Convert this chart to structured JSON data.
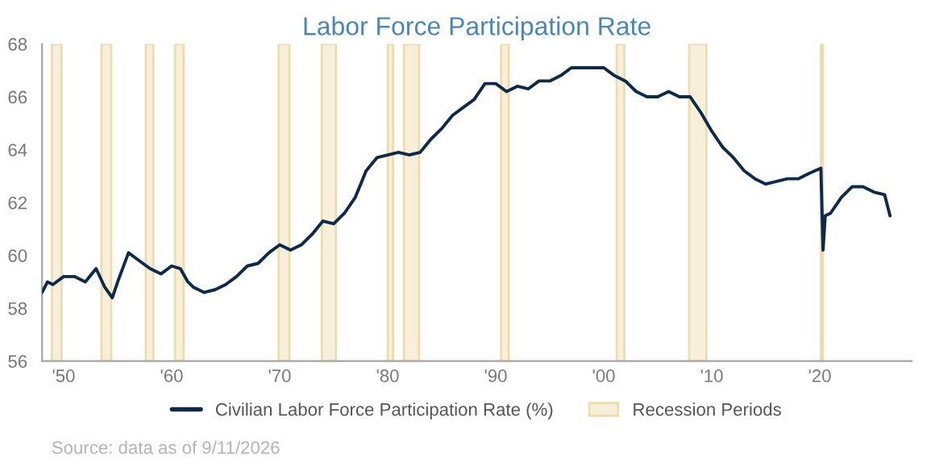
{
  "chart_data": {
    "type": "line",
    "title": "Labor Force Participation Rate",
    "x": [
      1948.0,
      1948.5,
      1949.0,
      1950.0,
      1951.0,
      1952.0,
      1953.0,
      1953.8,
      1954.5,
      1955.0,
      1956.0,
      1957.0,
      1958.0,
      1959.0,
      1960.0,
      1960.8,
      1961.5,
      1962.0,
      1963.0,
      1964.0,
      1965.0,
      1966.0,
      1967.0,
      1968.0,
      1969.0,
      1970.0,
      1971.0,
      1972.0,
      1973.0,
      1974.0,
      1975.0,
      1976.0,
      1977.0,
      1978.0,
      1979.0,
      1980.0,
      1981.0,
      1982.0,
      1983.0,
      1984.0,
      1985.0,
      1986.0,
      1987.0,
      1988.0,
      1989.0,
      1990.0,
      1991.0,
      1992.0,
      1993.0,
      1994.0,
      1995.0,
      1996.0,
      1997.0,
      1998.0,
      1999.0,
      2000.0,
      2001.0,
      2002.0,
      2003.0,
      2004.0,
      2005.0,
      2006.0,
      2007.0,
      2008.0,
      2009.0,
      2010.0,
      2011.0,
      2012.0,
      2013.0,
      2014.0,
      2015.0,
      2016.0,
      2017.0,
      2018.0,
      2019.0,
      2020.1,
      2020.3,
      2020.5,
      2021.0,
      2022.0,
      2023.0,
      2024.0,
      2025.0,
      2026.0,
      2026.5
    ],
    "series": [
      {
        "name": "Civilian Labor Force Participation Rate (%)",
        "color": "#0d2a4a",
        "values": [
          58.6,
          59.0,
          58.9,
          59.2,
          59.2,
          59.0,
          59.5,
          58.8,
          58.4,
          59.0,
          60.1,
          59.8,
          59.5,
          59.3,
          59.6,
          59.5,
          59.0,
          58.8,
          58.6,
          58.7,
          58.9,
          59.2,
          59.6,
          59.7,
          60.1,
          60.4,
          60.2,
          60.4,
          60.8,
          61.3,
          61.2,
          61.6,
          62.2,
          63.2,
          63.7,
          63.8,
          63.9,
          63.8,
          63.9,
          64.4,
          64.8,
          65.3,
          65.6,
          65.9,
          66.5,
          66.5,
          66.2,
          66.4,
          66.3,
          66.6,
          66.6,
          66.8,
          67.1,
          67.1,
          67.1,
          67.1,
          66.8,
          66.6,
          66.2,
          66.0,
          66.0,
          66.2,
          66.0,
          66.0,
          65.4,
          64.7,
          64.1,
          63.7,
          63.2,
          62.9,
          62.7,
          62.8,
          62.9,
          62.9,
          63.1,
          63.3,
          60.2,
          61.5,
          61.6,
          62.2,
          62.6,
          62.6,
          62.4,
          62.3,
          61.5
        ]
      }
    ],
    "xlim": [
      1948,
      2028.5
    ],
    "xticks": [
      {
        "value": 1950,
        "label": "'50"
      },
      {
        "value": 1960,
        "label": "'60"
      },
      {
        "value": 1970,
        "label": "'70"
      },
      {
        "value": 1980,
        "label": "'80"
      },
      {
        "value": 1990,
        "label": "'90"
      },
      {
        "value": 2000,
        "label": "'00"
      },
      {
        "value": 2010,
        "label": "'10"
      },
      {
        "value": 2020,
        "label": "'20"
      }
    ],
    "ylim": [
      56,
      68
    ],
    "yticks": [
      56,
      58,
      60,
      62,
      64,
      66,
      68
    ],
    "bands": [
      {
        "axis": "x",
        "from": 1948.9,
        "to": 1949.8,
        "label": "Recession Periods",
        "color": "#f7efd9"
      },
      {
        "axis": "x",
        "from": 1953.5,
        "to": 1954.4,
        "color": "#f7efd9"
      },
      {
        "axis": "x",
        "from": 1957.6,
        "to": 1958.3,
        "color": "#f7efd9"
      },
      {
        "axis": "x",
        "from": 1960.3,
        "to": 1961.1,
        "color": "#f7efd9"
      },
      {
        "axis": "x",
        "from": 1969.9,
        "to": 1970.9,
        "color": "#f7efd9"
      },
      {
        "axis": "x",
        "from": 1973.9,
        "to": 1975.2,
        "color": "#f7efd9"
      },
      {
        "axis": "x",
        "from": 1980.0,
        "to": 1980.5,
        "color": "#f7efd9"
      },
      {
        "axis": "x",
        "from": 1981.5,
        "to": 1982.9,
        "color": "#f7efd9"
      },
      {
        "axis": "x",
        "from": 1990.5,
        "to": 1991.2,
        "color": "#f7efd9"
      },
      {
        "axis": "x",
        "from": 2001.2,
        "to": 2001.9,
        "color": "#f7efd9"
      },
      {
        "axis": "x",
        "from": 2007.9,
        "to": 2009.5,
        "color": "#f7efd9"
      },
      {
        "axis": "x",
        "from": 2020.1,
        "to": 2020.3,
        "color": "#f7efd9"
      }
    ],
    "legend": "bottom",
    "grid": false,
    "annotations": [
      "Source: data as of 9/11/2026"
    ]
  }
}
